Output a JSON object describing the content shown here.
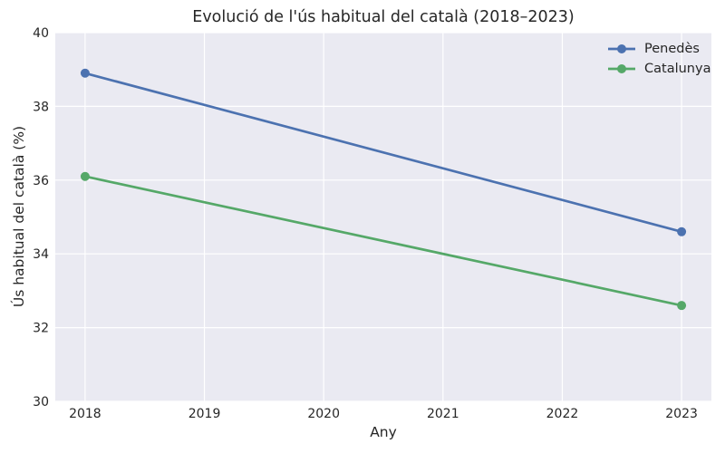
{
  "chart_data": {
    "type": "line",
    "title": "Evolució de l'ús habitual del català (2018–2023)",
    "xlabel": "Any",
    "ylabel": "Ús habitual del català (%)",
    "x": [
      2018,
      2023
    ],
    "series": [
      {
        "name": "Penedès",
        "values": [
          38.9,
          34.6
        ],
        "color": "#4C72B0"
      },
      {
        "name": "Catalunya",
        "values": [
          36.1,
          32.6
        ],
        "color": "#55A868"
      }
    ],
    "xticks": [
      2018,
      2019,
      2020,
      2021,
      2022,
      2023
    ],
    "yticks": [
      30,
      32,
      34,
      36,
      38,
      40
    ],
    "xlim": [
      2017.75,
      2023.25
    ],
    "ylim": [
      30,
      40
    ],
    "grid": true,
    "legend_position": "upper right",
    "style": {
      "plot_background": "#EAEAF2",
      "grid_color": "#FFFFFF",
      "text_color": "#262626",
      "figure_background": "#FFFFFF"
    }
  }
}
